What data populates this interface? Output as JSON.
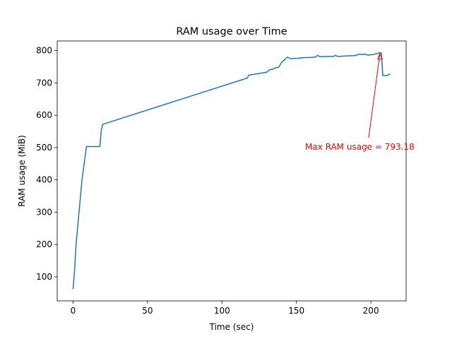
{
  "chart_data": {
    "type": "line",
    "title": "RAM usage over Time",
    "xlabel": "Time (sec)",
    "ylabel": "RAM usage (MiB)",
    "x": [
      0,
      1,
      2,
      4,
      6,
      9,
      18,
      19,
      20,
      117,
      118,
      130,
      132,
      134,
      136,
      138,
      140,
      142,
      144,
      146,
      150,
      155,
      160,
      163,
      164,
      166,
      170,
      175,
      176,
      178,
      182,
      188,
      190,
      192,
      194,
      196,
      198,
      202,
      204,
      206,
      207,
      208,
      211,
      213
    ],
    "series": [
      {
        "name": "RAM usage",
        "color": "#1f77b4",
        "values": [
          62,
          120,
          200,
          300,
          400,
          503,
          503,
          555,
          572,
          715,
          724,
          733,
          741,
          742,
          747,
          748,
          763,
          772,
          780,
          775,
          776,
          778,
          779,
          780,
          785,
          781,
          782,
          782,
          785,
          782,
          783,
          784,
          785,
          789,
          788,
          789,
          786,
          788,
          791,
          793.18,
          793,
          723,
          723,
          728
        ]
      }
    ],
    "xlim": [
      -10.65,
      223.65
    ],
    "xticks": [
      0,
      50,
      100,
      150,
      200
    ],
    "ylim": [
      25.6,
      829.7
    ],
    "yticks": [
      100,
      200,
      300,
      400,
      500,
      600,
      700,
      800
    ],
    "annotations": [
      {
        "text": "Max RAM usage = 793.18",
        "x": 206,
        "y": 793.18,
        "color": "red"
      }
    ]
  }
}
